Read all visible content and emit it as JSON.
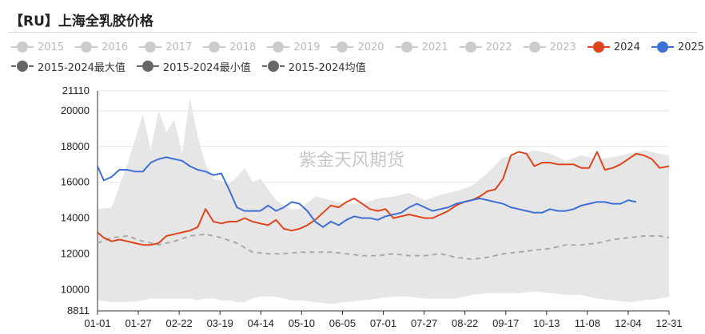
{
  "title": "【RU】上海全乳胶价格",
  "watermark": "紫金天风期货",
  "legend": {
    "row1": [
      {
        "label": "2015",
        "color": "#cccccc",
        "style": "solid-dot",
        "active": false
      },
      {
        "label": "2016",
        "color": "#cccccc",
        "style": "solid-dot",
        "active": false
      },
      {
        "label": "2017",
        "color": "#cccccc",
        "style": "solid-dot",
        "active": false
      },
      {
        "label": "2018",
        "color": "#cccccc",
        "style": "solid-dot",
        "active": false
      },
      {
        "label": "2019",
        "color": "#cccccc",
        "style": "solid-dot",
        "active": false
      },
      {
        "label": "2020",
        "color": "#cccccc",
        "style": "solid-dot",
        "active": false
      },
      {
        "label": "2021",
        "color": "#cccccc",
        "style": "solid-dot",
        "active": false
      },
      {
        "label": "2022",
        "color": "#cccccc",
        "style": "solid-dot",
        "active": false
      },
      {
        "label": "2023",
        "color": "#cccccc",
        "style": "solid-dot",
        "active": false
      },
      {
        "label": "2024",
        "color": "#e0441c",
        "style": "solid-dot",
        "active": true
      },
      {
        "label": "2025",
        "color": "#3d6fd4",
        "style": "solid-dot",
        "active": true
      }
    ],
    "row2": [
      {
        "label": "2015-2024最大值",
        "color": "#666666",
        "style": "dashed-dot",
        "active": true
      },
      {
        "label": "2015-2024最小值",
        "color": "#666666",
        "style": "solid-dot",
        "active": true
      },
      {
        "label": "2015-2024均值",
        "color": "#666666",
        "style": "dashed-dot",
        "active": true
      }
    ]
  },
  "chart_data": {
    "type": "line",
    "title": "【RU】上海全乳胶价格",
    "x_ticks": [
      "01-01",
      "01-27",
      "02-22",
      "03-19",
      "04-14",
      "05-10",
      "06-05",
      "07-01",
      "07-27",
      "08-22",
      "09-17",
      "10-13",
      "11-08",
      "12-04",
      "12-31"
    ],
    "y_ticks": [
      8811,
      10000,
      12000,
      14000,
      16000,
      18000,
      20000,
      21110
    ],
    "ylim": [
      8811,
      21110
    ],
    "xlim": [
      1,
      366
    ],
    "grid": true,
    "band": {
      "name_max": "2015-2024最大值",
      "name_min": "2015-2024最小值",
      "color": "#e6e6e6",
      "x": [
        1,
        10,
        20,
        30,
        35,
        40,
        45,
        50,
        55,
        60,
        65,
        70,
        75,
        80,
        85,
        90,
        95,
        100,
        105,
        110,
        115,
        120,
        125,
        130,
        140,
        150,
        160,
        170,
        180,
        190,
        200,
        210,
        220,
        230,
        240,
        250,
        260,
        270,
        280,
        290,
        300,
        310,
        320,
        330,
        340,
        350,
        360,
        366
      ],
      "max": [
        14500,
        14600,
        17000,
        19800,
        17800,
        20000,
        18800,
        19500,
        17600,
        20700,
        18600,
        17000,
        16200,
        16100,
        15900,
        16300,
        16800,
        16000,
        16200,
        15600,
        15000,
        14700,
        14500,
        14500,
        15200,
        15000,
        14800,
        14800,
        15100,
        15200,
        15400,
        15000,
        15300,
        15500,
        15800,
        16500,
        17400,
        17500,
        17800,
        17600,
        17200,
        17500,
        17300,
        17400,
        17600,
        17800,
        17600,
        17500
      ],
      "min": [
        9400,
        9300,
        9300,
        9400,
        9500,
        9500,
        9500,
        9500,
        9500,
        9500,
        9400,
        9500,
        9500,
        9400,
        9400,
        9300,
        9300,
        9500,
        9600,
        9600,
        9600,
        9500,
        9400,
        9400,
        9300,
        9200,
        9300,
        9400,
        9500,
        9600,
        9600,
        9500,
        9500,
        9500,
        9700,
        9800,
        9800,
        9800,
        9900,
        9800,
        9700,
        9700,
        9500,
        9400,
        9300,
        9400,
        9500,
        9600
      ]
    },
    "series": [
      {
        "name": "2015-2024均值",
        "color": "#aaaaaa",
        "dashed": true,
        "x": [
          1,
          10,
          20,
          30,
          40,
          50,
          60,
          70,
          80,
          90,
          100,
          110,
          120,
          130,
          140,
          150,
          160,
          170,
          180,
          190,
          200,
          210,
          220,
          230,
          240,
          250,
          260,
          270,
          280,
          290,
          300,
          310,
          320,
          330,
          340,
          350,
          360,
          366
        ],
        "y": [
          12600,
          12900,
          13000,
          12700,
          12500,
          12700,
          13000,
          13100,
          12900,
          12600,
          12100,
          12000,
          12000,
          12100,
          12100,
          12100,
          12000,
          11900,
          11900,
          12000,
          11900,
          11900,
          12000,
          11800,
          11700,
          11800,
          12000,
          12100,
          12200,
          12300,
          12500,
          12500,
          12600,
          12800,
          12900,
          13000,
          13000,
          12900
        ]
      },
      {
        "name": "2024",
        "color": "#e0441c",
        "dashed": false,
        "x": [
          1,
          5,
          10,
          15,
          20,
          25,
          30,
          35,
          40,
          45,
          50,
          55,
          60,
          65,
          70,
          75,
          80,
          85,
          90,
          95,
          100,
          105,
          110,
          115,
          120,
          125,
          130,
          135,
          140,
          145,
          150,
          155,
          160,
          165,
          170,
          175,
          180,
          185,
          190,
          195,
          200,
          205,
          210,
          215,
          220,
          225,
          230,
          235,
          240,
          245,
          250,
          255,
          260,
          265,
          270,
          275,
          280,
          285,
          290,
          295,
          300,
          305,
          310,
          315,
          320,
          325,
          330,
          335,
          340,
          345,
          350,
          355,
          360,
          366
        ],
        "y": [
          13200,
          12900,
          12700,
          12800,
          12700,
          12600,
          12500,
          12500,
          12600,
          13000,
          13100,
          13200,
          13300,
          13500,
          14500,
          13800,
          13700,
          13800,
          13800,
          14000,
          13800,
          13700,
          13600,
          13900,
          13400,
          13300,
          13400,
          13600,
          13900,
          14300,
          14700,
          14600,
          14900,
          15100,
          14800,
          14500,
          14400,
          14500,
          14000,
          14100,
          14200,
          14100,
          14000,
          14000,
          14200,
          14400,
          14700,
          14900,
          15000,
          15200,
          15500,
          15600,
          16200,
          17500,
          17700,
          17600,
          16900,
          17100,
          17100,
          17000,
          17000,
          17000,
          16800,
          16800,
          17700,
          16700,
          16800,
          17000,
          17300,
          17600,
          17500,
          17300,
          16800,
          16900
        ]
      },
      {
        "name": "2025",
        "color": "#3d6fd4",
        "dashed": false,
        "x": [
          1,
          5,
          10,
          15,
          20,
          25,
          30,
          35,
          40,
          45,
          50,
          55,
          60,
          65,
          70,
          75,
          80,
          85,
          90,
          95,
          100,
          105,
          110,
          115,
          120,
          125,
          130,
          135,
          140,
          145,
          150,
          155,
          160,
          165,
          170,
          175,
          180,
          185,
          190,
          195,
          200,
          205,
          210,
          215,
          220,
          225,
          230,
          235,
          240,
          245,
          250,
          255,
          260,
          265,
          270,
          275,
          280,
          285,
          290,
          295,
          300,
          305,
          310,
          315,
          320,
          325,
          330,
          335,
          340,
          345
        ],
        "y": [
          16900,
          16100,
          16300,
          16700,
          16700,
          16600,
          16600,
          17100,
          17300,
          17400,
          17300,
          17200,
          16900,
          16700,
          16600,
          16400,
          16500,
          15600,
          14600,
          14400,
          14400,
          14400,
          14700,
          14400,
          14600,
          14900,
          14800,
          14400,
          13800,
          13500,
          13800,
          13600,
          13900,
          14100,
          14000,
          14000,
          13900,
          14100,
          14200,
          14300,
          14600,
          14800,
          14600,
          14400,
          14500,
          14600,
          14800,
          14900,
          15000,
          15100,
          15000,
          14900,
          14800,
          14600,
          14500,
          14400,
          14300,
          14300,
          14500,
          14400,
          14400,
          14500,
          14700,
          14800,
          14900,
          14900,
          14800,
          14800,
          15000,
          14900
        ]
      }
    ]
  }
}
